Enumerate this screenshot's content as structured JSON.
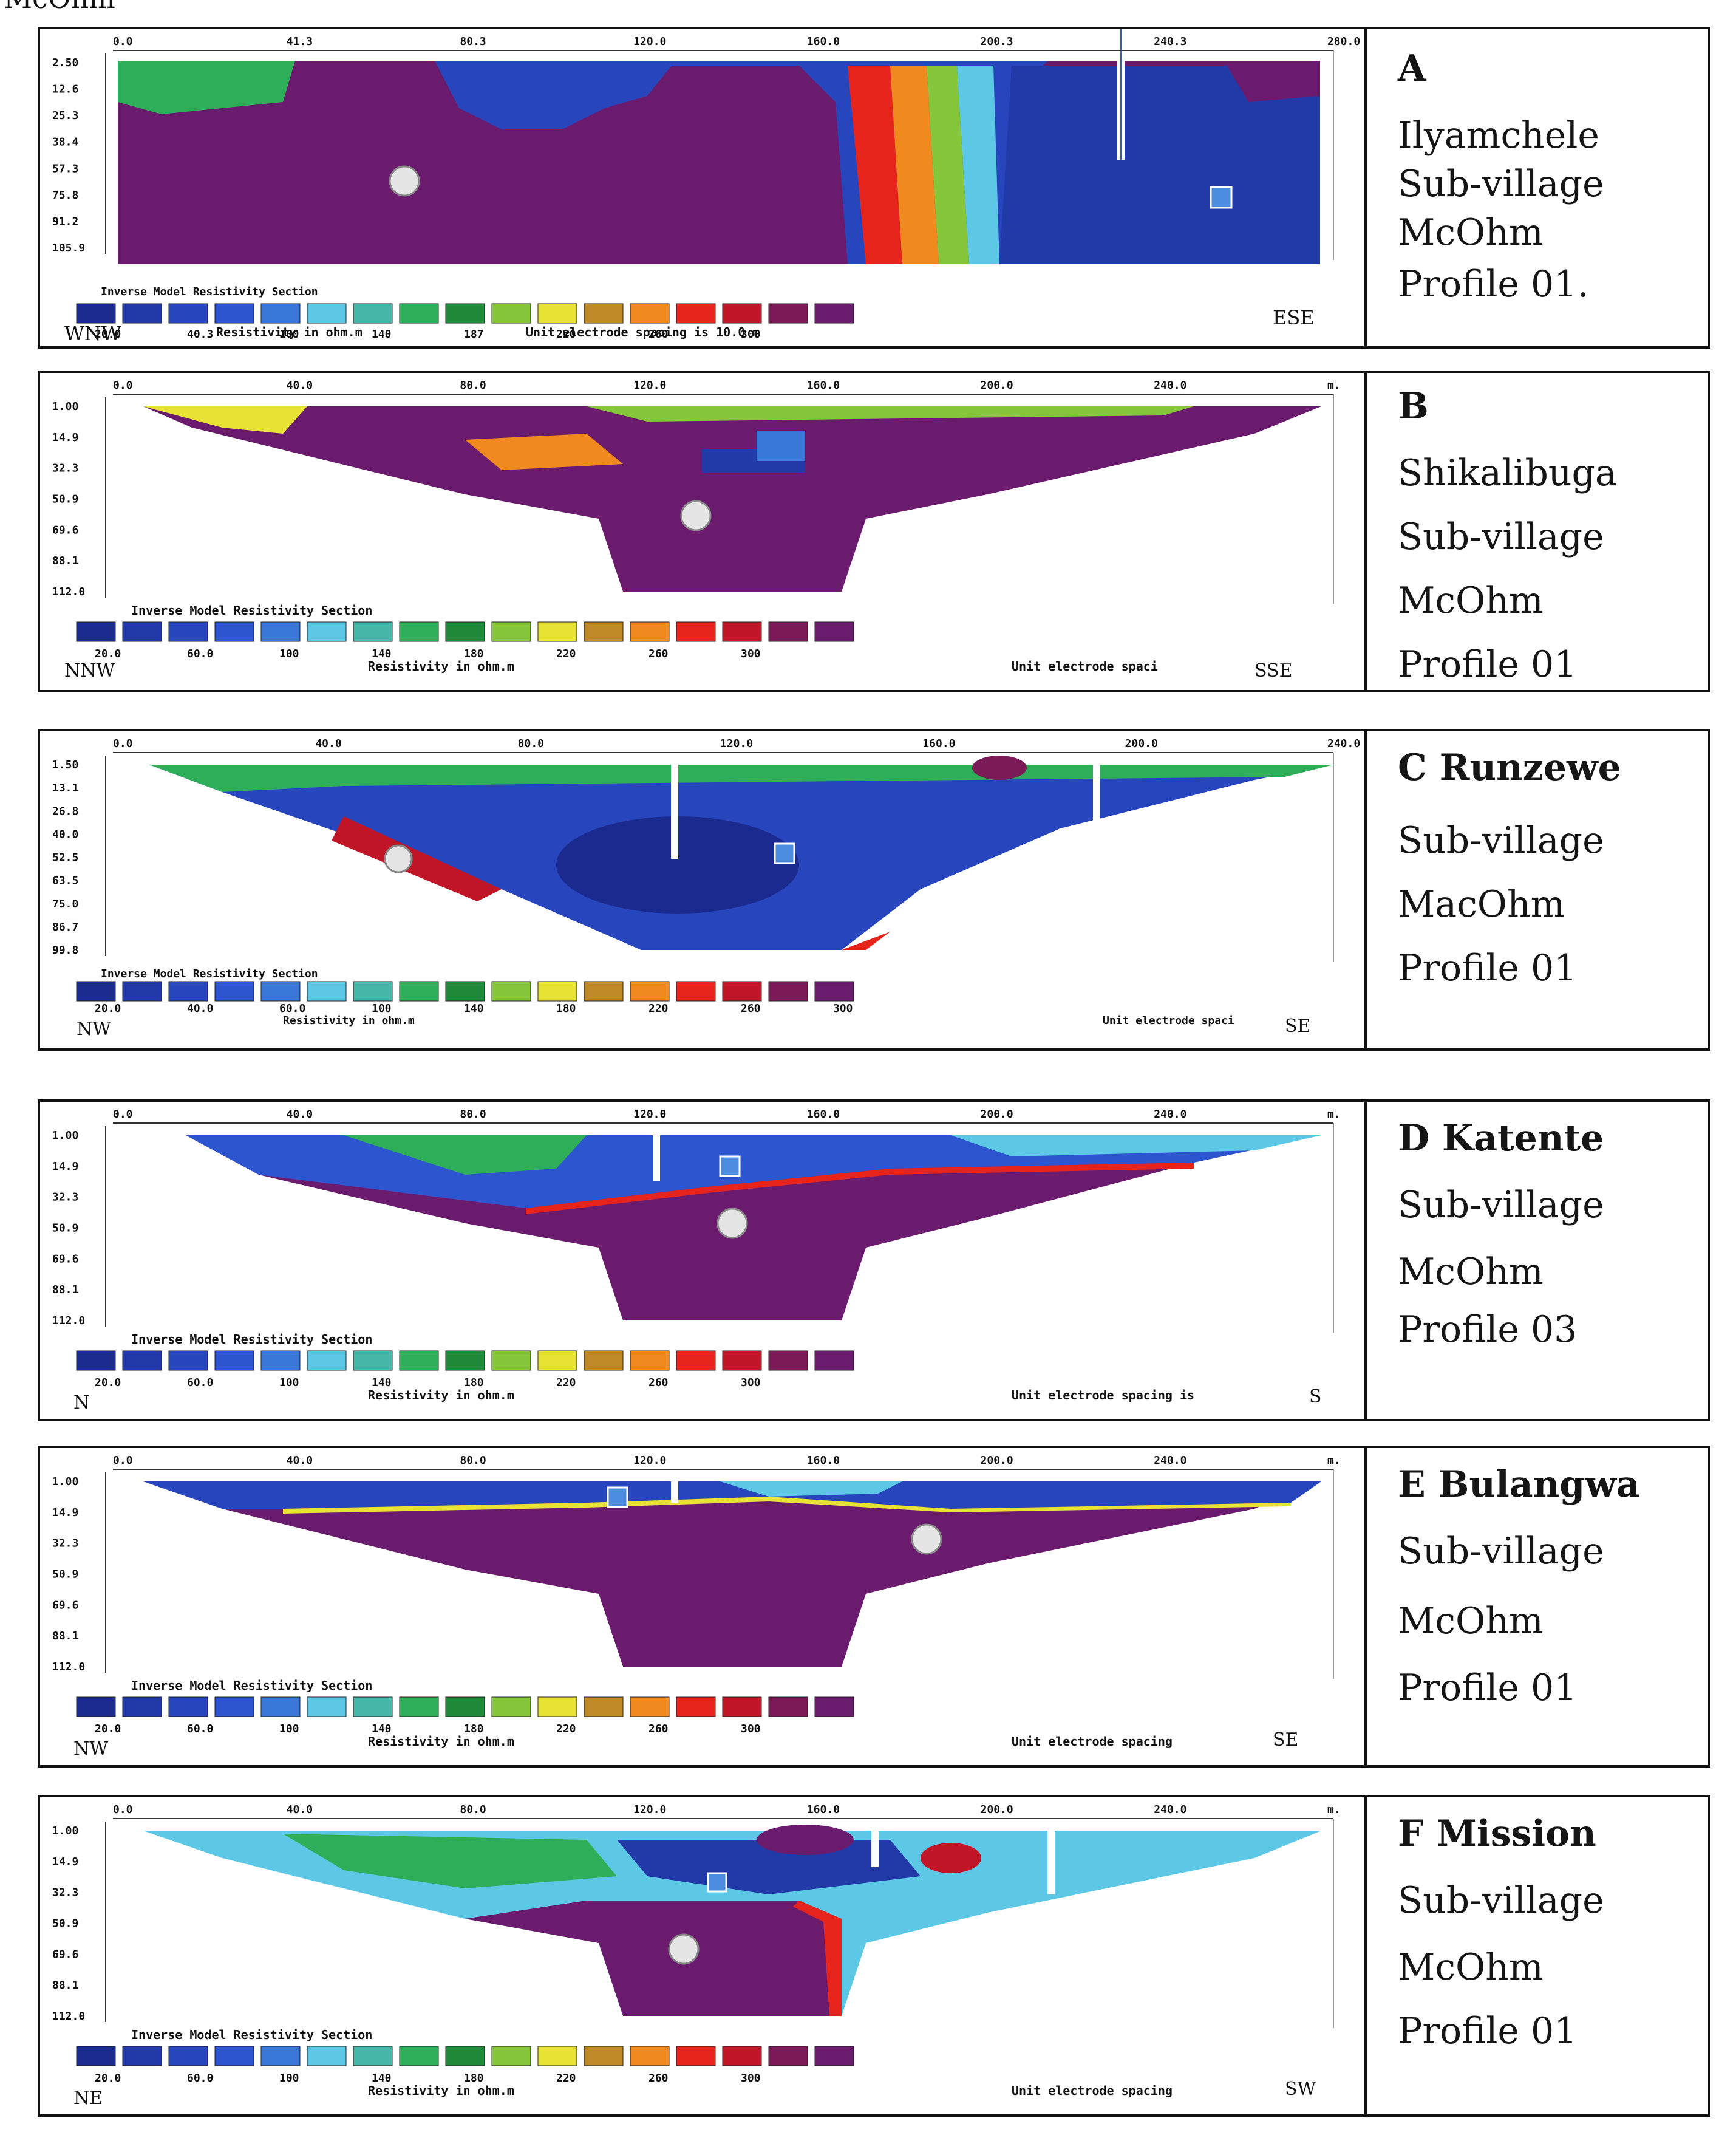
{
  "figure": {
    "top_caption": "McOhm"
  },
  "palette": [
    "#1b2a8f",
    "#223aa8",
    "#2746bd",
    "#2c55cf",
    "#3a78d8",
    "#5cc8e6",
    "#45b6a8",
    "#2fae5a",
    "#1e8a3a",
    "#86c63a",
    "#e8e235",
    "#c08a28",
    "#f08a1f",
    "#e7241c",
    "#c11628",
    "#7a1a56",
    "#6b1b6e"
  ],
  "panels": [
    {
      "id": "A",
      "label": [
        "A",
        "Ilyamchele",
        "Sub-village",
        "McOhm",
        "Profile 01."
      ],
      "depth_ticks": [
        "2.50",
        "12.6",
        "25.3",
        "38.4",
        "57.3",
        "75.8",
        "91.2",
        "105.9"
      ],
      "x_ticks": [
        "0.0",
        "41.3",
        "80.3",
        "120.0",
        "160.0",
        "200.3",
        "240.3",
        "280.0 m"
      ],
      "section_title": "Inverse Model Resistivity Section",
      "scale_labels": [
        "20.0",
        "40.3",
        "100",
        "140",
        "187",
        "220",
        "260",
        "300"
      ],
      "unit_label": "Resistivity in ohm.m",
      "spacing_label": "Unit electrode spacing is 10.0 m",
      "dir_left": "WNW",
      "dir_right": "ESE"
    },
    {
      "id": "B",
      "label": [
        "B",
        "Shikalibuga",
        "Sub-village",
        "McOhm",
        "Profile 01"
      ],
      "depth_ticks": [
        "1.00",
        "14.9",
        "32.3",
        "50.9",
        "69.6",
        "88.1",
        "112.0"
      ],
      "x_ticks": [
        "0.0",
        "40.0",
        "80.0",
        "120.0",
        "160.0",
        "200.0",
        "240.0",
        "m."
      ],
      "section_title": "Inverse Model Resistivity Section",
      "scale_labels": [
        "20.0",
        "60.0",
        "100",
        "140",
        "180",
        "220",
        "260",
        "300"
      ],
      "unit_label": "Resistivity in ohm.m",
      "spacing_label": "Unit electrode spaci",
      "dir_left": "NNW",
      "dir_right": "SSE"
    },
    {
      "id": "C",
      "label": [
        "C   Runzewe",
        "Sub-village",
        "MacOhm",
        "Profile 01"
      ],
      "depth_ticks": [
        "1.50",
        "13.1",
        "26.8",
        "40.0",
        "52.5",
        "63.5",
        "75.0",
        "86.7",
        "99.8"
      ],
      "x_ticks": [
        "0.0",
        "40.0",
        "80.0",
        "120.0",
        "160.0",
        "200.0",
        "240.0"
      ],
      "section_title": "Inverse Model Resistivity Section",
      "scale_labels": [
        "20.0",
        "40.0",
        "60.0",
        "100",
        "140",
        "180",
        "220",
        "260",
        "300"
      ],
      "unit_label": "Resistivity in ohm.m",
      "spacing_label": "Unit electrode spaci",
      "dir_left": "NW",
      "dir_right": "SE"
    },
    {
      "id": "D",
      "label": [
        "D     Katente",
        "Sub-village",
        "McOhm",
        "Profile 03"
      ],
      "depth_ticks": [
        "1.00",
        "14.9",
        "32.3",
        "50.9",
        "69.6",
        "88.1",
        "112.0"
      ],
      "x_ticks": [
        "0.0",
        "40.0",
        "80.0",
        "120.0",
        "160.0",
        "200.0",
        "240.0",
        "m."
      ],
      "section_title": "Inverse Model Resistivity Section",
      "scale_labels": [
        "20.0",
        "60.0",
        "100",
        "140",
        "180",
        "220",
        "260",
        "300"
      ],
      "unit_label": "Resistivity in ohm.m",
      "spacing_label": "Unit electrode spacing is",
      "dir_left": "N",
      "dir_right": "S"
    },
    {
      "id": "E",
      "label": [
        "E    Bulangwa",
        "Sub-village",
        "McOhm",
        "Profile 01"
      ],
      "depth_ticks": [
        "1.00",
        "14.9",
        "32.3",
        "50.9",
        "69.6",
        "88.1",
        "112.0"
      ],
      "x_ticks": [
        "0.0",
        "40.0",
        "80.0",
        "120.0",
        "160.0",
        "200.0",
        "240.0",
        "m."
      ],
      "section_title": "Inverse Model Resistivity Section",
      "scale_labels": [
        "20.0",
        "60.0",
        "100",
        "140",
        "180",
        "220",
        "260",
        "300"
      ],
      "unit_label": "Resistivity in ohm.m",
      "spacing_label": "Unit electrode spacing",
      "dir_left": "NW",
      "dir_right": "SE"
    },
    {
      "id": "F",
      "label": [
        "F     Mission",
        "Sub-village",
        "McOhm",
        "Profile 01"
      ],
      "depth_ticks": [
        "1.00",
        "14.9",
        "32.3",
        "50.9",
        "69.6",
        "88.1",
        "112.0"
      ],
      "x_ticks": [
        "0.0",
        "40.0",
        "80.0",
        "120.0",
        "160.0",
        "200.0",
        "240.0",
        "m."
      ],
      "section_title": "Inverse Model Resistivity Section",
      "scale_labels": [
        "20.0",
        "60.0",
        "100",
        "140",
        "180",
        "220",
        "260",
        "300"
      ],
      "unit_label": "Resistivity in ohm.m",
      "spacing_label": "Unit electrode spacing",
      "dir_left": "NE",
      "dir_right": "SW"
    }
  ]
}
